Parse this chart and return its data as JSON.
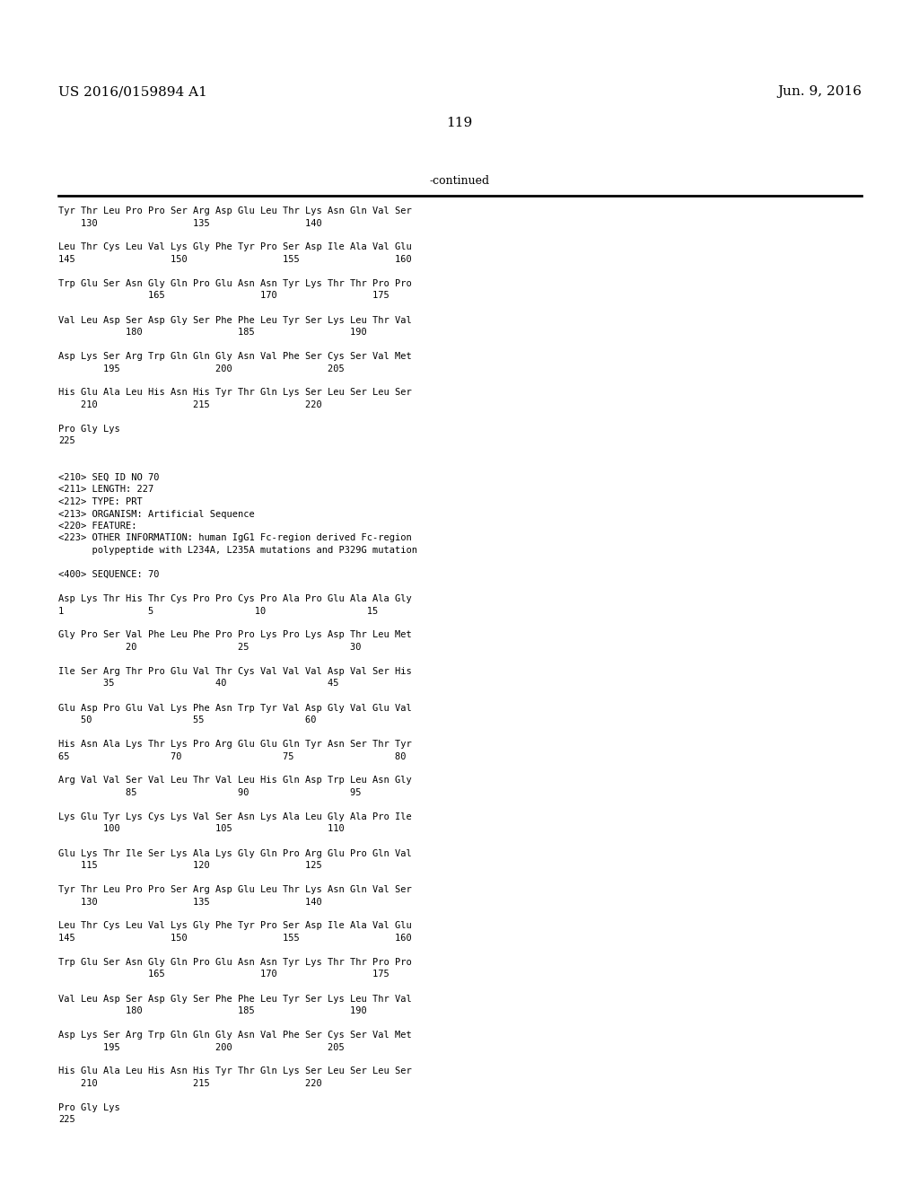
{
  "header_left": "US 2016/0159894 A1",
  "header_right": "Jun. 9, 2016",
  "page_number": "119",
  "continued_label": "-continued",
  "background_color": "#ffffff",
  "text_color": "#000000",
  "font_size": 7.5,
  "mono_font": "DejaVu Sans Mono",
  "serif_font": "DejaVu Serif",
  "content": [
    "Tyr Thr Leu Pro Pro Ser Arg Asp Glu Leu Thr Lys Asn Gln Val Ser",
    "    130                 135                 140",
    "",
    "Leu Thr Cys Leu Val Lys Gly Phe Tyr Pro Ser Asp Ile Ala Val Glu",
    "145                 150                 155                 160",
    "",
    "Trp Glu Ser Asn Gly Gln Pro Glu Asn Asn Tyr Lys Thr Thr Pro Pro",
    "                165                 170                 175",
    "",
    "Val Leu Asp Ser Asp Gly Ser Phe Phe Leu Tyr Ser Lys Leu Thr Val",
    "            180                 185                 190",
    "",
    "Asp Lys Ser Arg Trp Gln Gln Gly Asn Val Phe Ser Cys Ser Val Met",
    "        195                 200                 205",
    "",
    "His Glu Ala Leu His Asn His Tyr Thr Gln Lys Ser Leu Ser Leu Ser",
    "    210                 215                 220",
    "",
    "Pro Gly Lys",
    "225",
    "",
    "",
    "<210> SEQ ID NO 70",
    "<211> LENGTH: 227",
    "<212> TYPE: PRT",
    "<213> ORGANISM: Artificial Sequence",
    "<220> FEATURE:",
    "<223> OTHER INFORMATION: human IgG1 Fc-region derived Fc-region",
    "      polypeptide with L234A, L235A mutations and P329G mutation",
    "",
    "<400> SEQUENCE: 70",
    "",
    "Asp Lys Thr His Thr Cys Pro Pro Cys Pro Ala Pro Glu Ala Ala Gly",
    "1               5                  10                  15",
    "",
    "Gly Pro Ser Val Phe Leu Phe Pro Pro Lys Pro Lys Asp Thr Leu Met",
    "            20                  25                  30",
    "",
    "Ile Ser Arg Thr Pro Glu Val Thr Cys Val Val Val Asp Val Ser His",
    "        35                  40                  45",
    "",
    "Glu Asp Pro Glu Val Lys Phe Asn Trp Tyr Val Asp Gly Val Glu Val",
    "    50                  55                  60",
    "",
    "His Asn Ala Lys Thr Lys Pro Arg Glu Glu Gln Tyr Asn Ser Thr Tyr",
    "65                  70                  75                  80",
    "",
    "Arg Val Val Ser Val Leu Thr Val Leu His Gln Asp Trp Leu Asn Gly",
    "            85                  90                  95",
    "",
    "Lys Glu Tyr Lys Cys Lys Val Ser Asn Lys Ala Leu Gly Ala Pro Ile",
    "        100                 105                 110",
    "",
    "Glu Lys Thr Ile Ser Lys Ala Lys Gly Gln Pro Arg Glu Pro Gln Val",
    "    115                 120                 125",
    "",
    "Tyr Thr Leu Pro Pro Ser Arg Asp Glu Leu Thr Lys Asn Gln Val Ser",
    "    130                 135                 140",
    "",
    "Leu Thr Cys Leu Val Lys Gly Phe Tyr Pro Ser Asp Ile Ala Val Glu",
    "145                 150                 155                 160",
    "",
    "Trp Glu Ser Asn Gly Gln Pro Glu Asn Asn Tyr Lys Thr Thr Pro Pro",
    "                165                 170                 175",
    "",
    "Val Leu Asp Ser Asp Gly Ser Phe Phe Leu Tyr Ser Lys Leu Thr Val",
    "            180                 185                 190",
    "",
    "Asp Lys Ser Arg Trp Gln Gln Gly Asn Val Phe Ser Cys Ser Val Met",
    "        195                 200                 205",
    "",
    "His Glu Ala Leu His Asn His Tyr Thr Gln Lys Ser Leu Ser Leu Ser",
    "    210                 215                 220",
    "",
    "Pro Gly Lys",
    "225"
  ]
}
